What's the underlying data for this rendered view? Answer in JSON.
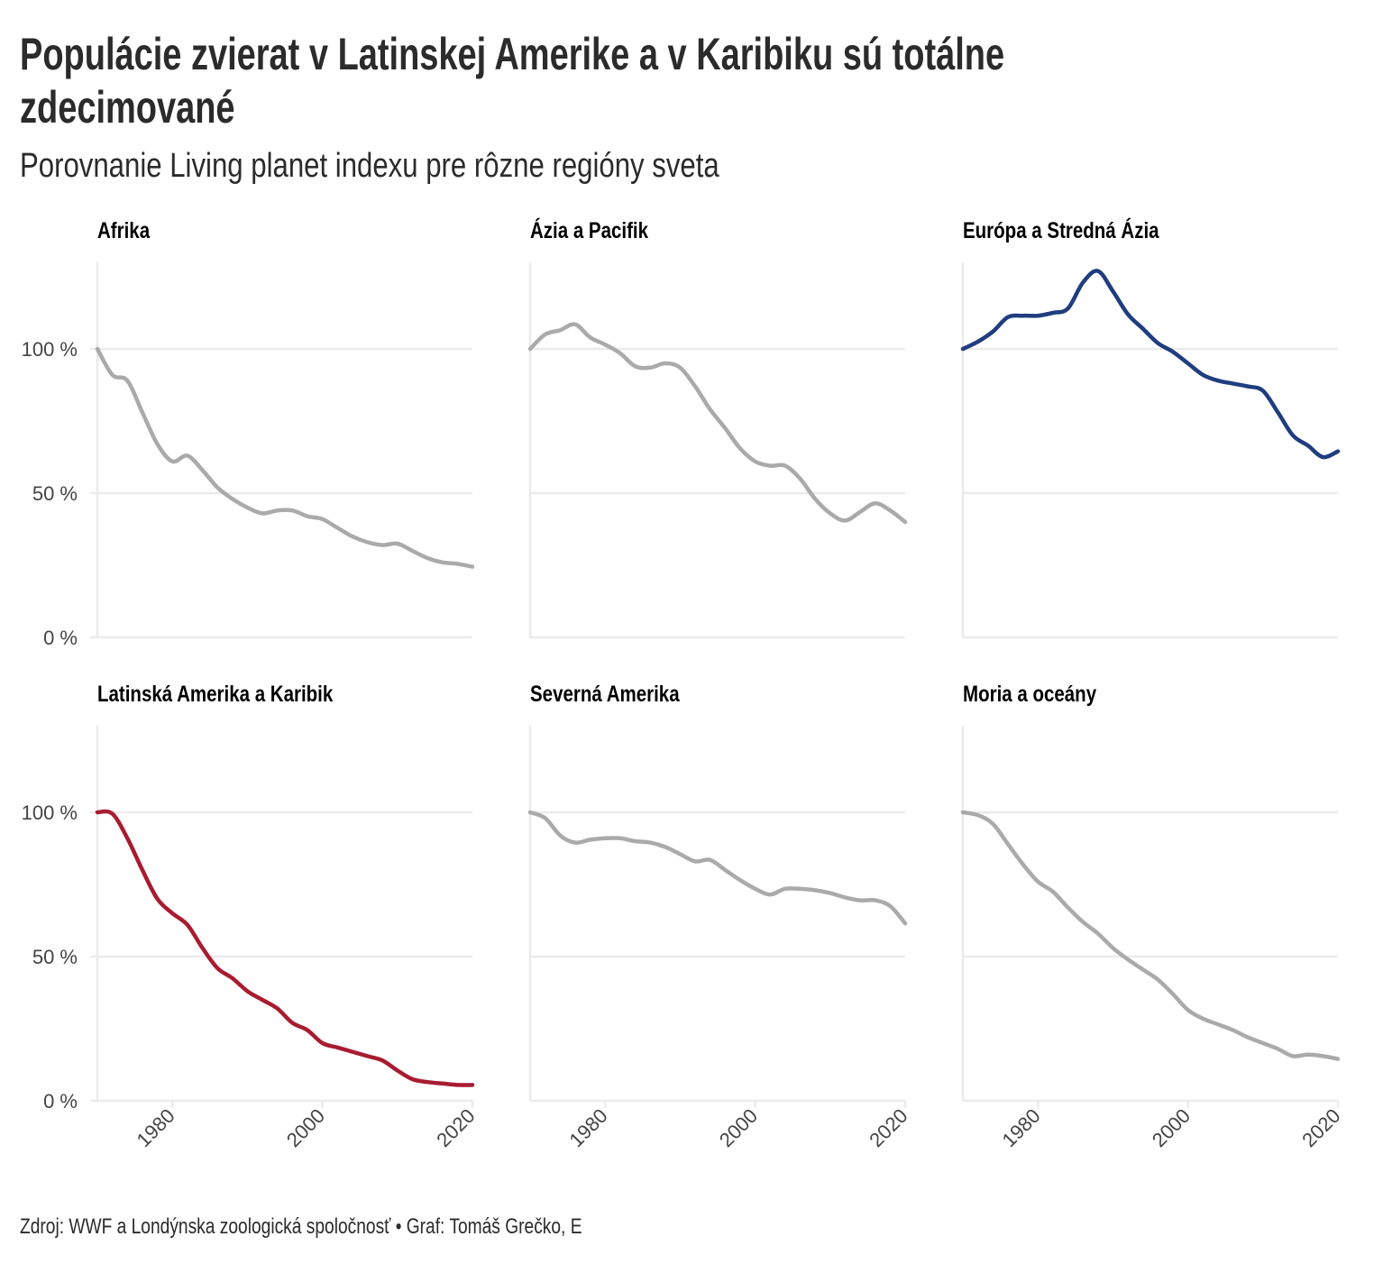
{
  "chart_data": {
    "type": "line",
    "title": "Populácie zvierat v Latinskej Amerike a v Karibiku sú totálne zdecimované",
    "title_lines": [
      "Populácie zvierat v Latinskej Amerike a v Karibiku sú totálne",
      "zdecimované"
    ],
    "subtitle": "Porovnanie Living planet indexu pre rôzne regióny sveta",
    "caption": "Zdroj: WWF a Londýnska zoologická spoločnosť • Graf: Tomáš Grečko, E",
    "xlabel": "",
    "ylabel": "",
    "xlim": [
      1970,
      2020
    ],
    "ylim": [
      0,
      130
    ],
    "x_ticks": [
      "1980",
      "2000",
      "2020"
    ],
    "x_tick_values": [
      1980,
      2000,
      2020
    ],
    "y_ticks": [
      "0 %",
      "50 %",
      "100 %"
    ],
    "y_tick_values": [
      0,
      50,
      100
    ],
    "grid": true,
    "x": [
      1970,
      1972,
      1974,
      1976,
      1978,
      1980,
      1982,
      1984,
      1986,
      1988,
      1990,
      1992,
      1994,
      1996,
      1998,
      2000,
      2002,
      2004,
      2006,
      2008,
      2010,
      2012,
      2014,
      2016,
      2018,
      2020
    ],
    "series": [
      {
        "name": "Afrika",
        "color": "#aaaaaa",
        "values": [
          100,
          91,
          89,
          78,
          67,
          61,
          63,
          58,
          52,
          48,
          45,
          43,
          44,
          44,
          42,
          41,
          38,
          35,
          33,
          32,
          32.5,
          30,
          27.5,
          26,
          25.5,
          24.5
        ]
      },
      {
        "name": "Ázia a Pacifik",
        "color": "#aaaaaa",
        "values": [
          100,
          105,
          106.5,
          108.5,
          104,
          101.5,
          98.5,
          94,
          93.5,
          95,
          93.5,
          87,
          79,
          72.5,
          65.5,
          61,
          59.5,
          59.5,
          55,
          48,
          43,
          40.5,
          43.5,
          46.5,
          44,
          40
        ]
      },
      {
        "name": "Európa a Stredná Ázia",
        "color": "#1f3d7f",
        "values": [
          100,
          102.5,
          106,
          111,
          111.5,
          111.5,
          112.5,
          114,
          123,
          127,
          120,
          112,
          107,
          102,
          99,
          95,
          91,
          89,
          88,
          87,
          85.5,
          78,
          70,
          66.5,
          62.5,
          64.5
        ]
      },
      {
        "name": "Latinská Amerika a Karibik",
        "color": "#a81c30",
        "values": [
          100,
          99.5,
          91,
          80,
          70,
          65,
          61,
          53,
          46,
          42.5,
          38,
          35,
          32,
          27,
          24.5,
          20,
          18.5,
          17,
          15.5,
          14,
          10.5,
          7.5,
          6.5,
          6,
          5.5,
          5.5
        ]
      },
      {
        "name": "Severná Amerika",
        "color": "#aaaaaa",
        "values": [
          100,
          98,
          92,
          89.5,
          90.5,
          91,
          91,
          90,
          89.5,
          88,
          85.5,
          83,
          83.5,
          80,
          76.5,
          73.5,
          71.5,
          73.5,
          73.5,
          73,
          72,
          70.5,
          69.5,
          69.5,
          67.5,
          61.5
        ]
      },
      {
        "name": "Moria a oceány",
        "color": "#aaaaaa",
        "values": [
          100,
          99,
          96,
          89,
          82,
          76,
          72.5,
          67,
          62,
          58,
          53,
          49,
          45.5,
          42,
          37,
          31.5,
          28.5,
          26.5,
          24.5,
          22,
          20,
          18,
          15.5,
          16,
          15.5,
          14.5
        ]
      }
    ]
  }
}
